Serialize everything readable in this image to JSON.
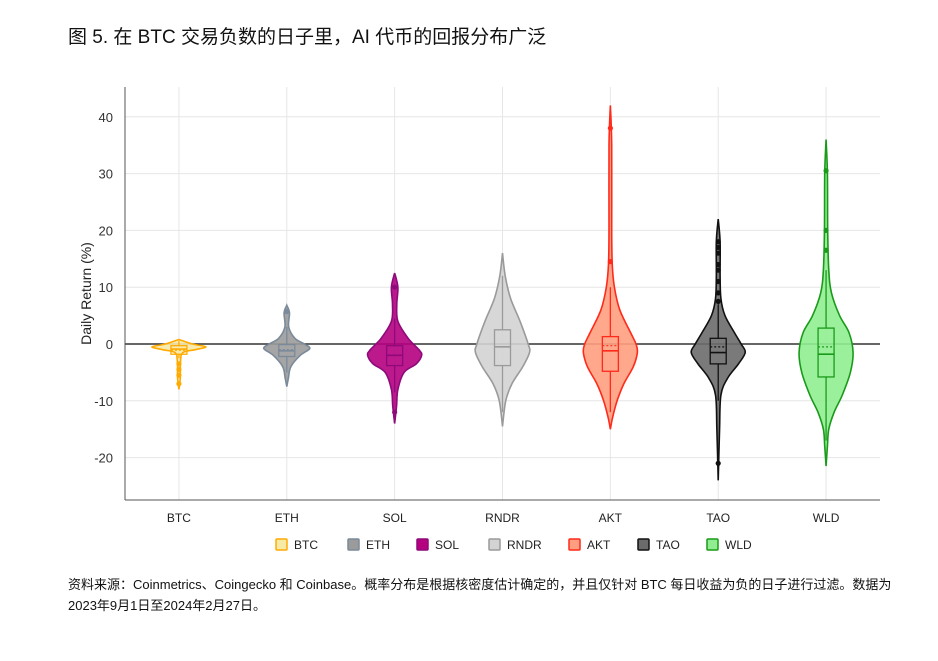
{
  "title": "图 5. 在 BTC 交易负数的日子里，AI 代币的回报分布广泛",
  "footnote": "资料来源：Coinmetrics、Coingecko 和 Coinbase。概率分布是根据核密度估计确定的，并且仅针对 BTC 每日收益为负的日子进行过滤。数据为2023年9月1日至2024年2月27日。",
  "chart_data": {
    "type": "violin",
    "title": "",
    "xlabel": "",
    "ylabel": "Daily Return (%)",
    "ylim": [
      -27,
      45
    ],
    "yticks": [
      -20,
      -10,
      0,
      10,
      20,
      30,
      40
    ],
    "grid": true,
    "reference_line": 0,
    "legend_placement": "bottom",
    "categories": [
      "BTC",
      "ETH",
      "SOL",
      "RNDR",
      "AKT",
      "TAO",
      "WLD"
    ],
    "series": [
      {
        "name": "BTC",
        "fill": "#f7e9a6",
        "stroke": "#ffaa00",
        "box": {
          "whisker_low": -2.5,
          "q1": -1.8,
          "median": -0.9,
          "mean": -1.1,
          "q3": -0.3,
          "whisker_high": 0.5
        },
        "outliers": [
          -3.5,
          -4.5,
          -5.5,
          -7
        ],
        "density": [
          [
            0.8,
            0
          ],
          [
            0,
            0.5
          ],
          [
            -0.5,
            1
          ],
          [
            -1,
            0.6
          ],
          [
            -1.5,
            0.15
          ],
          [
            -3,
            0.06
          ],
          [
            -6,
            0.05
          ],
          [
            -8,
            0
          ]
        ]
      },
      {
        "name": "ETH",
        "fill": "#9b9b9b",
        "stroke": "#7a8a9a",
        "box": {
          "whisker_low": -5,
          "q1": -2.2,
          "median": -1.2,
          "mean": -1.0,
          "q3": -0.1,
          "whisker_high": 3
        },
        "outliers": [
          5.7
        ],
        "density": [
          [
            6.8,
            0
          ],
          [
            5.5,
            0.1
          ],
          [
            3,
            0.07
          ],
          [
            1,
            0.3
          ],
          [
            0,
            0.65
          ],
          [
            -0.8,
            0.85
          ],
          [
            -2,
            0.5
          ],
          [
            -4,
            0.15
          ],
          [
            -6,
            0.06
          ],
          [
            -7.5,
            0
          ]
        ]
      },
      {
        "name": "SOL",
        "fill": "#b5007f",
        "stroke": "#8e0a7a",
        "box": {
          "whisker_low": -8.5,
          "q1": -3.8,
          "median": -2.0,
          "mean": -2.0,
          "q3": -0.3,
          "whisker_high": 4.5
        },
        "outliers": [
          10,
          -12
        ],
        "density": [
          [
            12.5,
            0
          ],
          [
            10,
            0.12
          ],
          [
            7,
            0.08
          ],
          [
            4,
            0.12
          ],
          [
            1,
            0.5
          ],
          [
            -1,
            0.9
          ],
          [
            -2,
            1
          ],
          [
            -3.5,
            0.8
          ],
          [
            -5,
            0.35
          ],
          [
            -8,
            0.12
          ],
          [
            -11,
            0.07
          ],
          [
            -14,
            0
          ]
        ]
      },
      {
        "name": "RNDR",
        "fill": "#d3d3d3",
        "stroke": "#9a9a9a",
        "box": {
          "whisker_low": -12,
          "q1": -3.8,
          "median": -0.5,
          "mean": -0.5,
          "q3": 2.5,
          "whisker_high": 12
        },
        "outliers": [],
        "density": [
          [
            16,
            0
          ],
          [
            12,
            0.1
          ],
          [
            8,
            0.3
          ],
          [
            4,
            0.65
          ],
          [
            0,
            0.95
          ],
          [
            -1.5,
            1
          ],
          [
            -4,
            0.75
          ],
          [
            -7,
            0.35
          ],
          [
            -10,
            0.12
          ],
          [
            -14.5,
            0
          ]
        ]
      },
      {
        "name": "AKT",
        "fill": "#ff9e80",
        "stroke": "#ff2a1a",
        "box": {
          "whisker_low": -12,
          "q1": -4.8,
          "median": -1.2,
          "mean": -0.3,
          "q3": 1.3,
          "whisker_high": 10
        },
        "outliers": [
          38,
          14.5
        ],
        "density": [
          [
            42,
            0
          ],
          [
            35,
            0.05
          ],
          [
            20,
            0.05
          ],
          [
            14,
            0.07
          ],
          [
            10,
            0.15
          ],
          [
            6,
            0.35
          ],
          [
            2,
            0.75
          ],
          [
            0,
            0.95
          ],
          [
            -1.5,
            1
          ],
          [
            -4,
            0.85
          ],
          [
            -7,
            0.5
          ],
          [
            -10,
            0.25
          ],
          [
            -13,
            0.08
          ],
          [
            -15,
            0
          ]
        ]
      },
      {
        "name": "TAO",
        "fill": "#6b6b6b",
        "stroke": "#111111",
        "box": {
          "whisker_low": -10,
          "q1": -3.5,
          "median": -1.5,
          "mean": -0.5,
          "q3": 1.0,
          "whisker_high": 7
        },
        "outliers": [
          18,
          17,
          16,
          14,
          13,
          11,
          9,
          7.5,
          -21
        ],
        "density": [
          [
            22,
            0
          ],
          [
            18,
            0.07
          ],
          [
            12,
            0.07
          ],
          [
            8,
            0.1
          ],
          [
            5,
            0.25
          ],
          [
            2,
            0.6
          ],
          [
            0,
            0.85
          ],
          [
            -1.5,
            1
          ],
          [
            -3.5,
            0.75
          ],
          [
            -6,
            0.35
          ],
          [
            -9,
            0.1
          ],
          [
            -15,
            0.05
          ],
          [
            -24,
            0
          ]
        ]
      },
      {
        "name": "WLD",
        "fill": "#90ee90",
        "stroke": "#1a9a1a",
        "box": {
          "whisker_low": -17,
          "q1": -5.8,
          "median": -1.8,
          "mean": -0.5,
          "q3": 2.8,
          "whisker_high": 13
        },
        "outliers": [
          30.5,
          20,
          16.5
        ],
        "density": [
          [
            36,
            0
          ],
          [
            30,
            0.05
          ],
          [
            20,
            0.06
          ],
          [
            13,
            0.1
          ],
          [
            9,
            0.2
          ],
          [
            5,
            0.5
          ],
          [
            2,
            0.85
          ],
          [
            -1.5,
            1
          ],
          [
            -5,
            0.9
          ],
          [
            -9,
            0.6
          ],
          [
            -12,
            0.3
          ],
          [
            -15,
            0.1
          ],
          [
            -18,
            0.05
          ],
          [
            -21.5,
            0
          ]
        ]
      }
    ]
  }
}
